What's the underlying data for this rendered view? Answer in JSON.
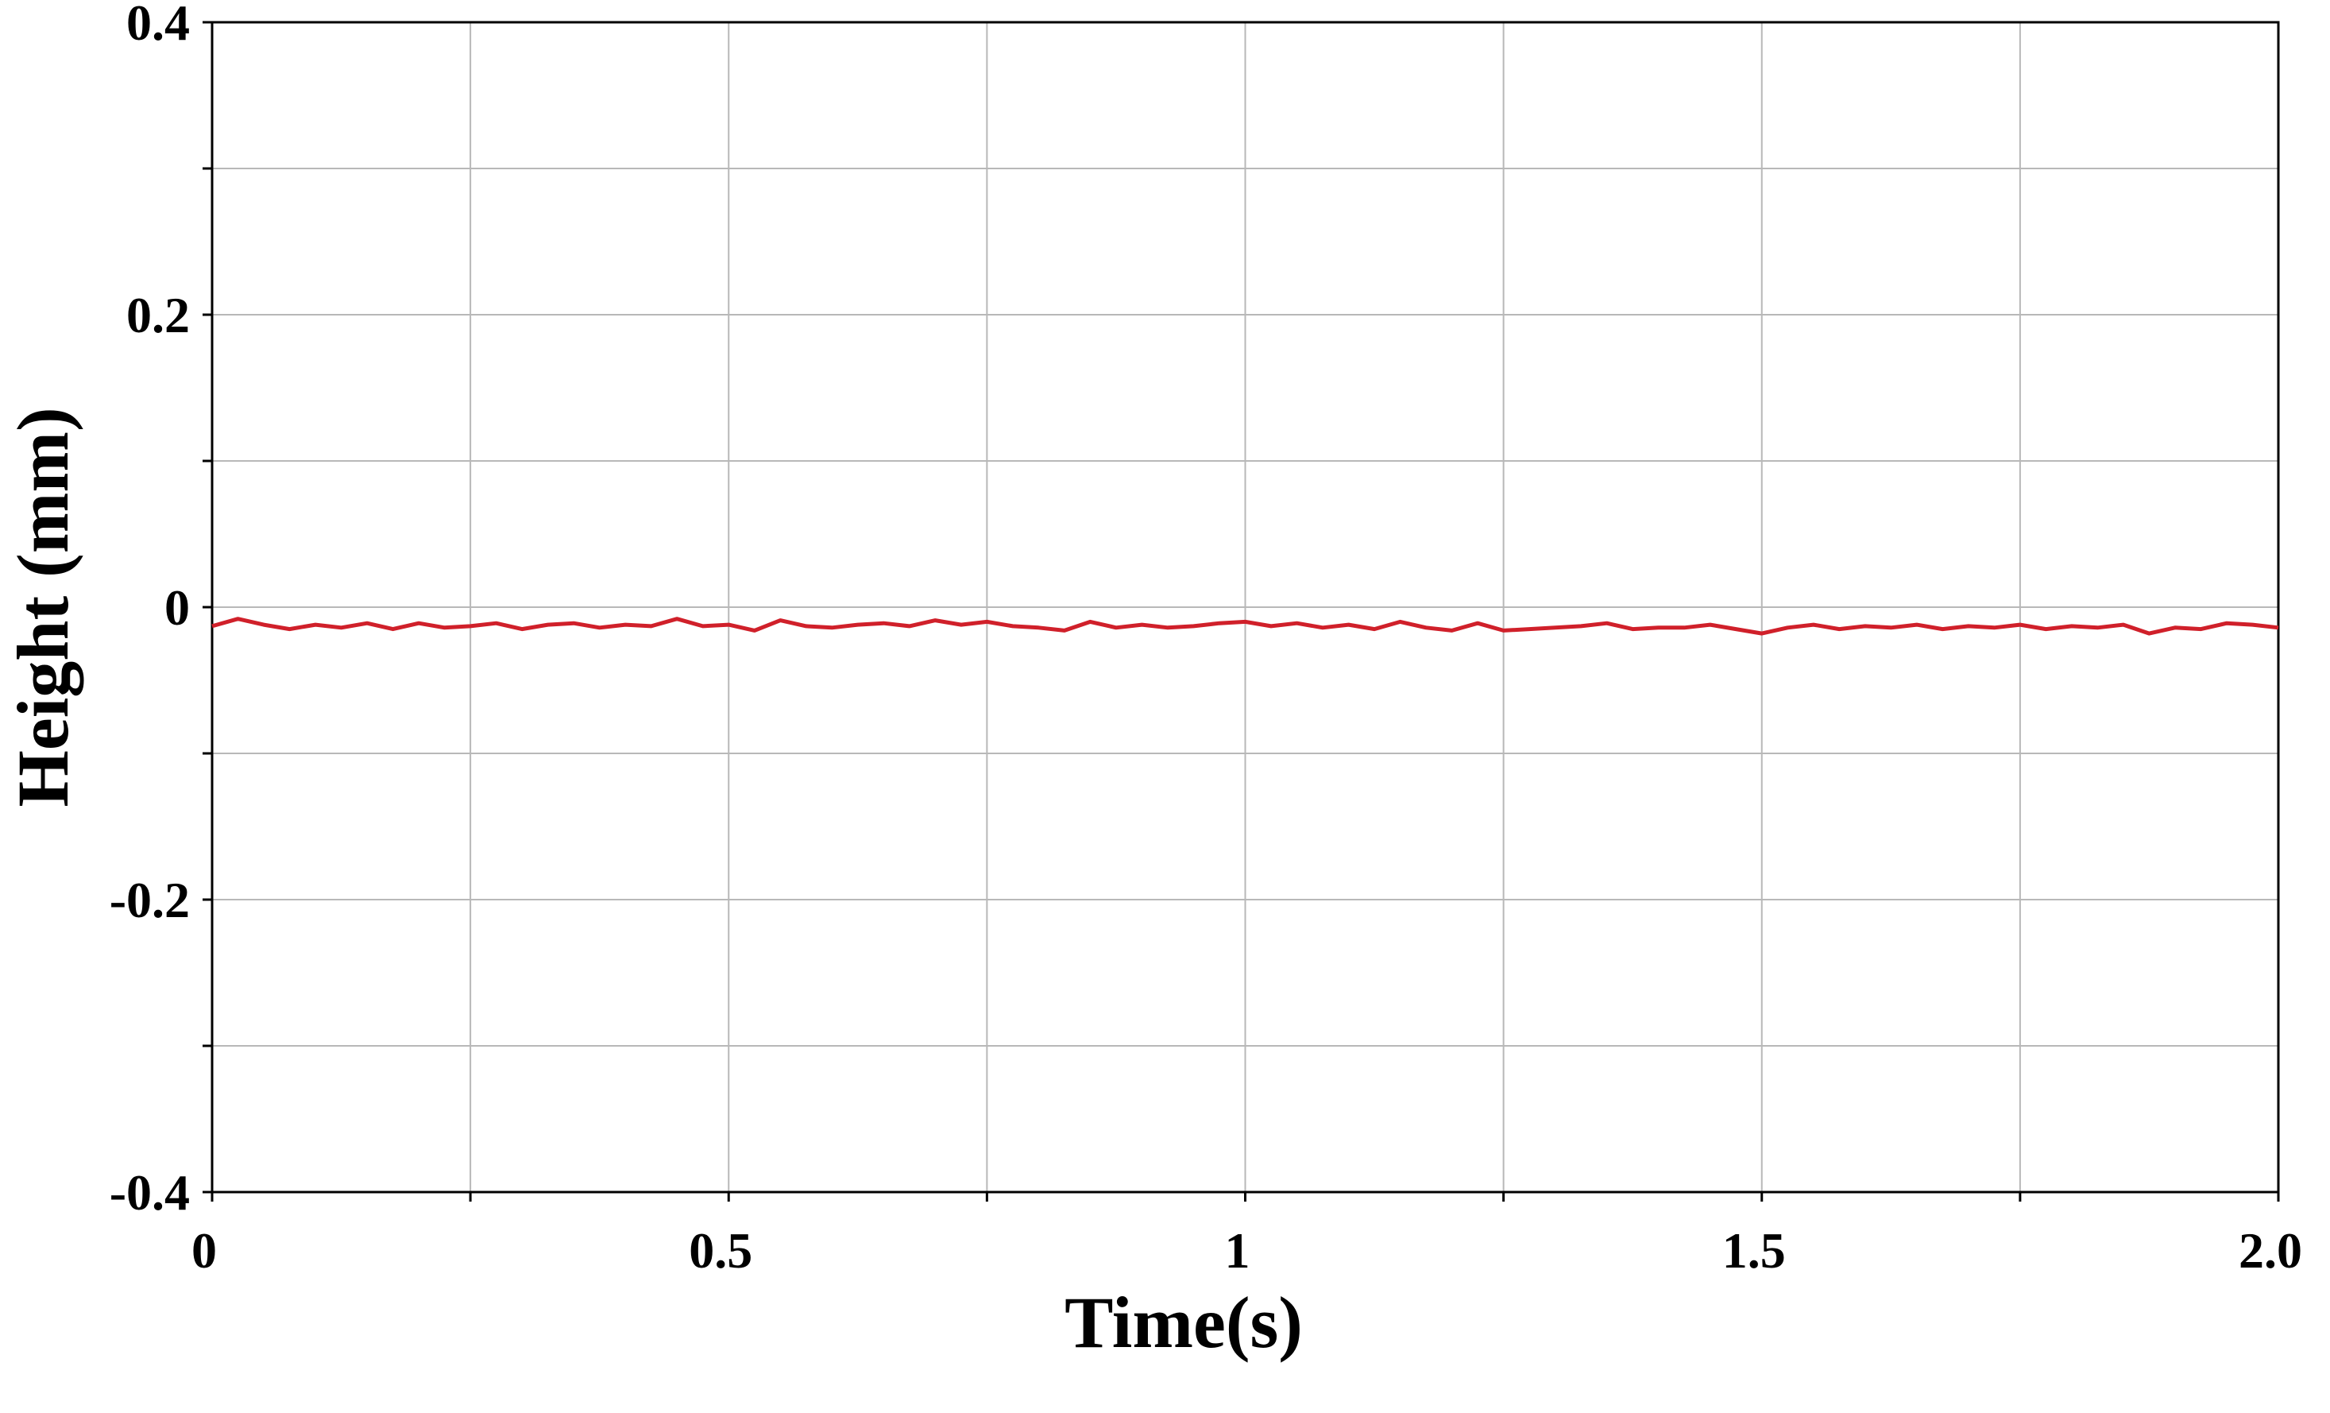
{
  "chart_data": {
    "type": "line",
    "x_label": "Time(s)",
    "y_label": "Height (mm)",
    "xlim": [
      0,
      2
    ],
    "ylim": [
      -0.4,
      0.4
    ],
    "xticks": [
      0,
      0.5,
      1,
      1.5,
      {
        "value": 2,
        "label": "2.0"
      }
    ],
    "xticks_minor": [
      0.25,
      0.75,
      1.25,
      1.75
    ],
    "yticks": [
      -0.4,
      -0.2,
      0,
      0.2,
      0.4
    ],
    "yticks_minor": [
      -0.3,
      -0.1,
      0.1,
      0.3
    ],
    "grid": true,
    "series": [
      {
        "color": "#d0202a",
        "x": [
          0,
          0.025,
          0.05,
          0.075,
          0.1,
          0.125,
          0.15,
          0.175,
          0.2,
          0.225,
          0.25,
          0.275,
          0.3,
          0.325,
          0.35,
          0.375,
          0.4,
          0.425,
          0.45,
          0.475,
          0.5,
          0.525,
          0.55,
          0.575,
          0.6,
          0.625,
          0.65,
          0.675,
          0.7,
          0.725,
          0.75,
          0.775,
          0.8,
          0.825,
          0.85,
          0.875,
          0.9,
          0.925,
          0.95,
          0.975,
          1,
          1.025,
          1.05,
          1.075,
          1.1,
          1.125,
          1.15,
          1.175,
          1.2,
          1.225,
          1.25,
          1.275,
          1.3,
          1.325,
          1.35,
          1.375,
          1.4,
          1.425,
          1.45,
          1.475,
          1.5,
          1.525,
          1.55,
          1.575,
          1.6,
          1.625,
          1.65,
          1.675,
          1.7,
          1.725,
          1.75,
          1.775,
          1.8,
          1.825,
          1.85,
          1.875,
          1.9,
          1.925,
          1.95,
          1.975,
          2
        ],
        "values": [
          -0.013,
          -0.008,
          -0.012,
          -0.015,
          -0.012,
          -0.014,
          -0.011,
          -0.015,
          -0.011,
          -0.014,
          -0.013,
          -0.011,
          -0.015,
          -0.012,
          -0.011,
          -0.014,
          -0.012,
          -0.013,
          -0.008,
          -0.013,
          -0.012,
          -0.016,
          -0.009,
          -0.013,
          -0.014,
          -0.012,
          -0.011,
          -0.013,
          -0.009,
          -0.012,
          -0.01,
          -0.013,
          -0.014,
          -0.016,
          -0.01,
          -0.014,
          -0.012,
          -0.014,
          -0.013,
          -0.011,
          -0.01,
          -0.013,
          -0.011,
          -0.014,
          -0.012,
          -0.015,
          -0.01,
          -0.014,
          -0.016,
          -0.011,
          -0.016,
          -0.015,
          -0.014,
          -0.013,
          -0.011,
          -0.015,
          -0.014,
          -0.014,
          -0.012,
          -0.015,
          -0.018,
          -0.014,
          -0.012,
          -0.015,
          -0.013,
          -0.014,
          -0.012,
          -0.015,
          -0.013,
          -0.014,
          -0.012,
          -0.015,
          -0.013,
          -0.014,
          -0.012,
          -0.018,
          -0.014,
          -0.015,
          -0.011,
          -0.012,
          -0.014
        ]
      }
    ]
  }
}
